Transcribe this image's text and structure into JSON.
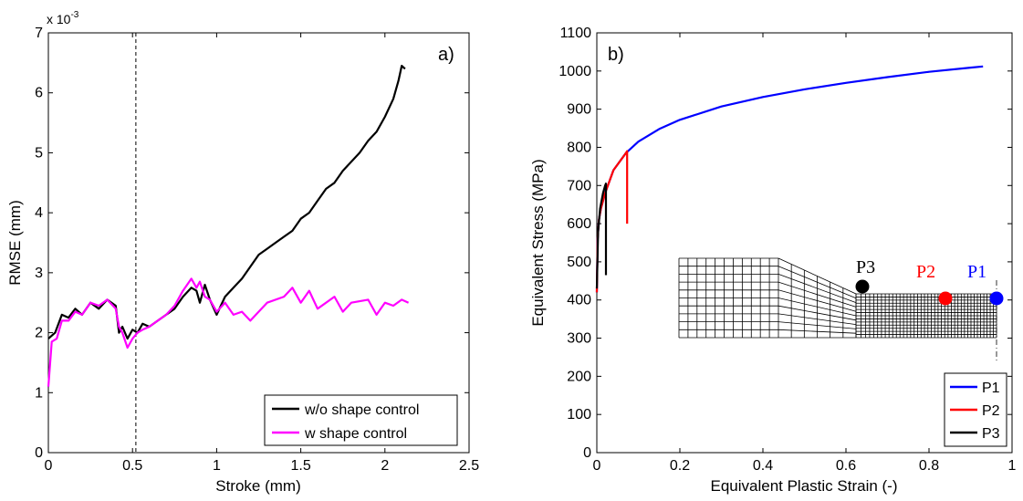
{
  "chart_data": [
    {
      "type": "line",
      "panel_label": "a)",
      "xlabel": "Stroke (mm)",
      "ylabel": "RMSE (mm)",
      "y_multiplier": "x 10",
      "y_multiplier_exp": "-3",
      "xlim": [
        0,
        2.5
      ],
      "ylim": [
        0,
        7
      ],
      "xticks": [
        "0",
        "0.5",
        "1",
        "1.5",
        "2",
        "2.5"
      ],
      "yticks": [
        "0",
        "1",
        "2",
        "3",
        "4",
        "5",
        "6",
        "7"
      ],
      "grid": false,
      "legend_position": "bottom-right",
      "vline_x": 0.52,
      "series": [
        {
          "name": "w/o shape control",
          "color": "#000000",
          "x": [
            0.0,
            0.04,
            0.08,
            0.12,
            0.16,
            0.2,
            0.25,
            0.3,
            0.35,
            0.4,
            0.42,
            0.44,
            0.47,
            0.5,
            0.53,
            0.56,
            0.6,
            0.65,
            0.7,
            0.75,
            0.8,
            0.85,
            0.88,
            0.9,
            0.93,
            0.96,
            1.0,
            1.05,
            1.1,
            1.15,
            1.2,
            1.25,
            1.3,
            1.35,
            1.4,
            1.45,
            1.5,
            1.55,
            1.6,
            1.65,
            1.7,
            1.75,
            1.8,
            1.85,
            1.9,
            1.95,
            2.0,
            2.05,
            2.08,
            2.1,
            2.12
          ],
          "y": [
            1.9,
            2.0,
            2.3,
            2.25,
            2.4,
            2.3,
            2.5,
            2.4,
            2.55,
            2.45,
            2.0,
            2.1,
            1.9,
            2.05,
            2.0,
            2.15,
            2.1,
            2.2,
            2.3,
            2.4,
            2.6,
            2.75,
            2.7,
            2.5,
            2.8,
            2.55,
            2.3,
            2.6,
            2.75,
            2.9,
            3.1,
            3.3,
            3.4,
            3.5,
            3.6,
            3.7,
            3.9,
            4.0,
            4.2,
            4.4,
            4.5,
            4.7,
            4.85,
            5.0,
            5.2,
            5.35,
            5.6,
            5.9,
            6.2,
            6.45,
            6.4
          ]
        },
        {
          "name": "w shape control",
          "color": "#ff00ff",
          "x": [
            0.0,
            0.02,
            0.05,
            0.08,
            0.12,
            0.16,
            0.2,
            0.25,
            0.3,
            0.35,
            0.4,
            0.42,
            0.44,
            0.47,
            0.5,
            0.53,
            0.56,
            0.6,
            0.65,
            0.7,
            0.75,
            0.8,
            0.85,
            0.88,
            0.9,
            0.93,
            0.96,
            1.0,
            1.05,
            1.1,
            1.15,
            1.2,
            1.3,
            1.4,
            1.45,
            1.5,
            1.55,
            1.6,
            1.7,
            1.75,
            1.8,
            1.9,
            1.95,
            2.0,
            2.05,
            2.1,
            2.14
          ],
          "y": [
            1.1,
            1.85,
            1.9,
            2.2,
            2.2,
            2.35,
            2.3,
            2.5,
            2.45,
            2.55,
            2.4,
            2.1,
            2.0,
            1.75,
            1.9,
            2.0,
            2.05,
            2.1,
            2.2,
            2.3,
            2.45,
            2.7,
            2.9,
            2.75,
            2.85,
            2.6,
            2.55,
            2.35,
            2.5,
            2.3,
            2.35,
            2.2,
            2.5,
            2.6,
            2.75,
            2.5,
            2.7,
            2.4,
            2.6,
            2.35,
            2.5,
            2.55,
            2.3,
            2.5,
            2.45,
            2.55,
            2.5
          ]
        }
      ]
    },
    {
      "type": "line",
      "panel_label": "b)",
      "xlabel": "Equivalent Plastic Strain (-)",
      "ylabel": "Equivalent Stress (MPa)",
      "xlim": [
        0,
        1.0
      ],
      "ylim": [
        0,
        1100
      ],
      "xticks": [
        "0",
        "0.2",
        "0.4",
        "0.6",
        "0.8",
        "1"
      ],
      "yticks": [
        "0",
        "100",
        "200",
        "300",
        "400",
        "500",
        "600",
        "700",
        "800",
        "900",
        "1000",
        "1100"
      ],
      "grid": false,
      "legend_position": "bottom-right",
      "point_labels": [
        "P3",
        "P2",
        "P1"
      ],
      "series": [
        {
          "name": "P1",
          "color": "#0000ff",
          "x": [
            0.0,
            0.002,
            0.005,
            0.01,
            0.02,
            0.04,
            0.07,
            0.1,
            0.15,
            0.2,
            0.3,
            0.4,
            0.5,
            0.6,
            0.7,
            0.8,
            0.9,
            0.93
          ],
          "y": [
            420,
            560,
            610,
            640,
            680,
            740,
            785,
            815,
            848,
            872,
            907,
            932,
            952,
            969,
            984,
            998,
            1009,
            1012
          ]
        },
        {
          "name": "P2",
          "color": "#ff0000",
          "x": [
            0.0,
            0.002,
            0.005,
            0.01,
            0.02,
            0.04,
            0.07,
            0.073,
            0.073
          ],
          "y": [
            420,
            560,
            610,
            640,
            680,
            740,
            785,
            790,
            600
          ]
        },
        {
          "name": "P3",
          "color": "#000000",
          "x": [
            0.0,
            0.003,
            0.008,
            0.015,
            0.02,
            0.022,
            0.022
          ],
          "y": [
            430,
            580,
            640,
            680,
            700,
            705,
            465
          ]
        }
      ]
    }
  ]
}
